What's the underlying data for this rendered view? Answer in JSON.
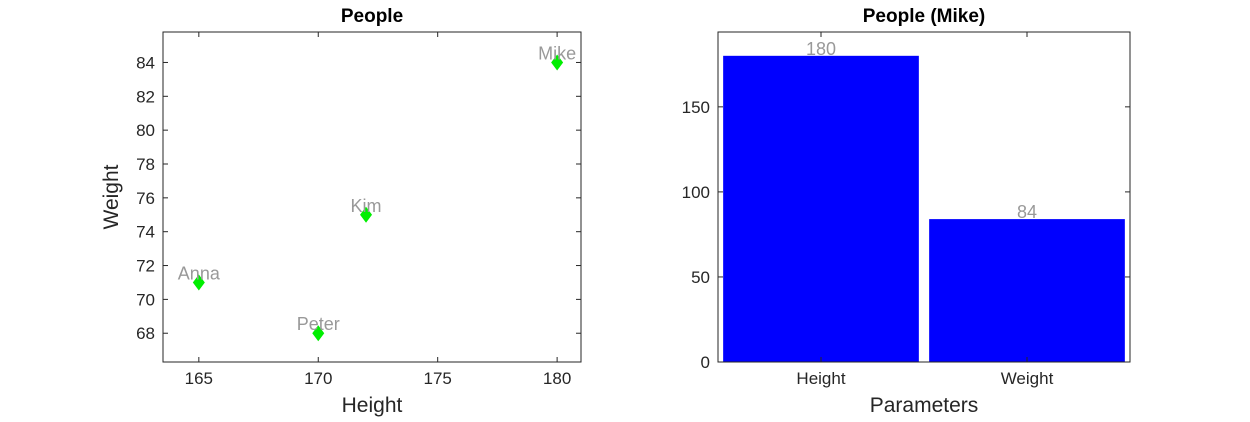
{
  "chart_data": [
    {
      "type": "scatter",
      "title": "People",
      "xlabel": "Height",
      "ylabel": "Weight",
      "xlim": [
        163.5,
        181
      ],
      "ylim": [
        66.3,
        85.8
      ],
      "xticks": [
        165,
        170,
        175,
        180
      ],
      "yticks": [
        68,
        70,
        72,
        74,
        76,
        78,
        80,
        82,
        84
      ],
      "marker": "diamond",
      "marker_color": "#00ee00",
      "label_color": "#999999",
      "points": [
        {
          "label": "Anna",
          "x": 165,
          "y": 71
        },
        {
          "label": "Peter",
          "x": 170,
          "y": 68
        },
        {
          "label": "Kim",
          "x": 172,
          "y": 75
        },
        {
          "label": "Mike",
          "x": 180,
          "y": 84
        }
      ]
    },
    {
      "type": "bar",
      "title": "People (Mike)",
      "xlabel": "Parameters",
      "ylabel": "",
      "categories": [
        "Height",
        "Weight"
      ],
      "values": [
        180,
        84
      ],
      "data_labels": [
        "180",
        "84"
      ],
      "ylim": [
        0,
        194
      ],
      "yticks": [
        0,
        50,
        100,
        150
      ],
      "bar_color": "#0000ff",
      "label_color": "#999999"
    }
  ]
}
